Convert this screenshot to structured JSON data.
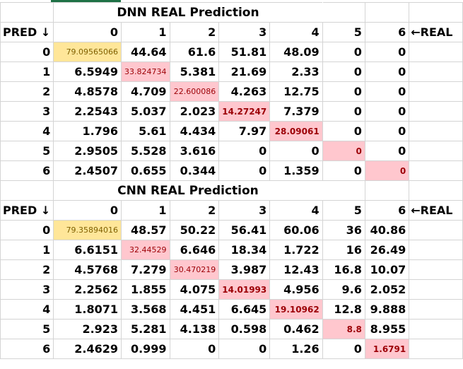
{
  "dnn": {
    "title": "DNN REAL Prediction",
    "pred_label": "PRED ↓",
    "real_label": "←REAL",
    "columns": [
      "0",
      "1",
      "2",
      "3",
      "4",
      "5",
      "6"
    ],
    "rows": [
      {
        "pred": "0",
        "cells": [
          "79.09565066",
          "44.64",
          "61.6",
          "51.81",
          "48.09",
          "0",
          "0"
        ]
      },
      {
        "pred": "1",
        "cells": [
          "6.5949",
          "33.824734",
          "5.381",
          "21.69",
          "2.33",
          "0",
          "0"
        ]
      },
      {
        "pred": "2",
        "cells": [
          "4.8578",
          "4.709",
          "22.600086",
          "4.263",
          "12.75",
          "0",
          "0"
        ]
      },
      {
        "pred": "3",
        "cells": [
          "2.2543",
          "5.037",
          "2.023",
          "14.27247",
          "7.379",
          "0",
          "0"
        ]
      },
      {
        "pred": "4",
        "cells": [
          "1.796",
          "5.61",
          "4.434",
          "7.97",
          "28.09061",
          "0",
          "0"
        ]
      },
      {
        "pred": "5",
        "cells": [
          "2.9505",
          "5.528",
          "3.616",
          "0",
          "0",
          "0",
          "0"
        ]
      },
      {
        "pred": "6",
        "cells": [
          "2.4507",
          "0.655",
          "0.344",
          "0",
          "1.359",
          "0",
          "0"
        ]
      }
    ]
  },
  "cnn": {
    "title": "CNN REAL Prediction",
    "pred_label": "PRED ↓",
    "real_label": "←REAL",
    "columns": [
      "0",
      "1",
      "2",
      "3",
      "4",
      "5",
      "6"
    ],
    "rows": [
      {
        "pred": "0",
        "cells": [
          "79.35894016",
          "48.57",
          "50.22",
          "56.41",
          "60.06",
          "36",
          "40.86"
        ]
      },
      {
        "pred": "1",
        "cells": [
          "6.6151",
          "32.44529",
          "6.646",
          "18.34",
          "1.722",
          "16",
          "26.49"
        ]
      },
      {
        "pred": "2",
        "cells": [
          "4.5768",
          "7.279",
          "30.470219",
          "3.987",
          "12.43",
          "16.8",
          "10.07"
        ]
      },
      {
        "pred": "3",
        "cells": [
          "2.2562",
          "1.855",
          "4.075",
          "14.01993",
          "4.956",
          "9.6",
          "2.052"
        ]
      },
      {
        "pred": "4",
        "cells": [
          "1.8071",
          "3.568",
          "4.451",
          "6.645",
          "19.10962",
          "12.8",
          "9.888"
        ]
      },
      {
        "pred": "5",
        "cells": [
          "2.923",
          "5.281",
          "4.138",
          "0.598",
          "0.462",
          "8.8",
          "8.955"
        ]
      },
      {
        "pred": "6",
        "cells": [
          "2.4629",
          "0.999",
          "0",
          "0",
          "1.26",
          "0",
          "1.6791"
        ]
      }
    ]
  },
  "colors": {
    "highlight_yellow": "#ffe699",
    "highlight_pink": "#ffc7ce",
    "pink_text": "#9c0006",
    "gridline": "#d4d4d4",
    "selection_green": "#1e7145"
  }
}
